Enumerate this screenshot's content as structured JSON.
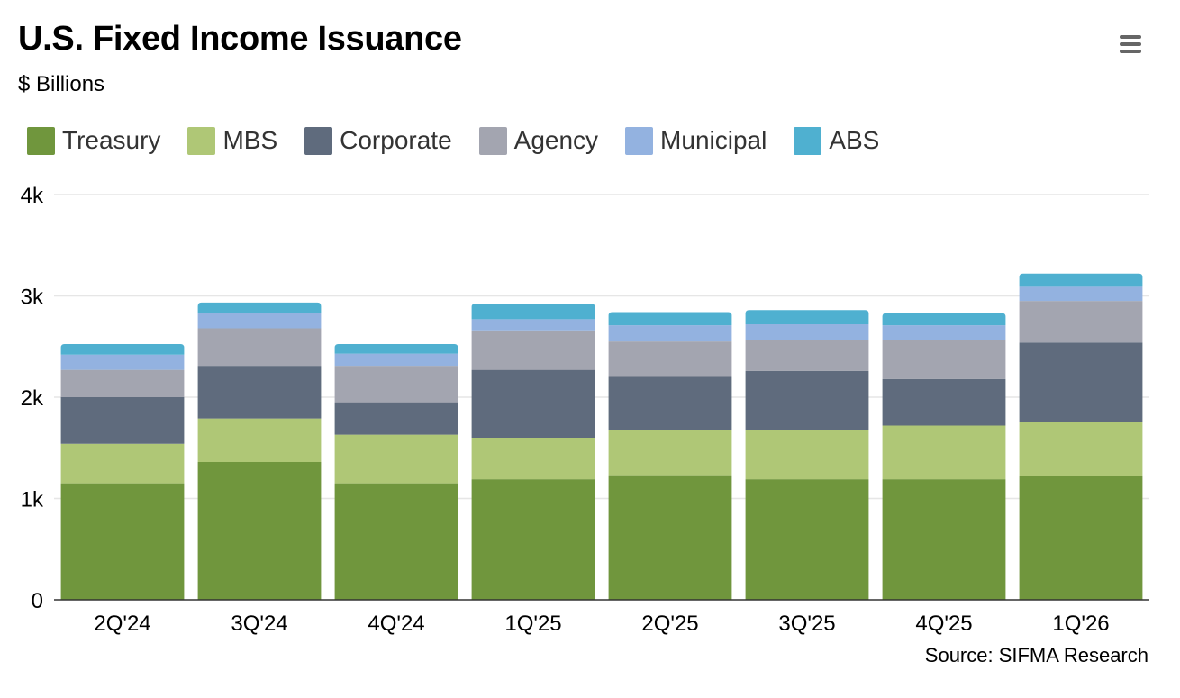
{
  "header": {
    "title": "U.S. Fixed Income Issuance",
    "subtitle": "$ Billions",
    "menu_icon": "hamburger-menu-icon"
  },
  "footer": {
    "source": "Source: SIFMA Research"
  },
  "chart_data": {
    "type": "bar",
    "stacked": true,
    "title": "U.S. Fixed Income Issuance",
    "subtitle": "$ Billions",
    "xlabel": "",
    "ylabel": "",
    "ylim": [
      0,
      4000
    ],
    "yticks": [
      0,
      1000,
      2000,
      3000,
      4000
    ],
    "ytick_labels": [
      "0",
      "1k",
      "2k",
      "3k",
      "4k"
    ],
    "grid": true,
    "legend_position": "top-left",
    "categories": [
      "2Q'24",
      "3Q'24",
      "4Q'24",
      "1Q'25",
      "2Q'25",
      "3Q'25",
      "4Q'25",
      "1Q'26"
    ],
    "series": [
      {
        "name": "Treasury",
        "color": "#70963D",
        "values": [
          1150,
          1360,
          1150,
          1190,
          1230,
          1190,
          1190,
          1220
        ]
      },
      {
        "name": "MBS",
        "color": "#AFC776",
        "values": [
          390,
          430,
          480,
          410,
          450,
          490,
          530,
          540
        ]
      },
      {
        "name": "Corporate",
        "color": "#5F6B7D",
        "values": [
          460,
          520,
          320,
          670,
          520,
          580,
          460,
          780
        ]
      },
      {
        "name": "Agency",
        "color": "#A3A5B0",
        "values": [
          270,
          370,
          360,
          390,
          350,
          300,
          380,
          410
        ]
      },
      {
        "name": "Municipal",
        "color": "#93B2E0",
        "values": [
          150,
          150,
          120,
          110,
          160,
          160,
          150,
          140
        ]
      },
      {
        "name": "ABS",
        "color": "#4FB0D0",
        "values": [
          105,
          105,
          95,
          155,
          130,
          140,
          120,
          130
        ]
      }
    ],
    "source": "Source: SIFMA Research"
  }
}
